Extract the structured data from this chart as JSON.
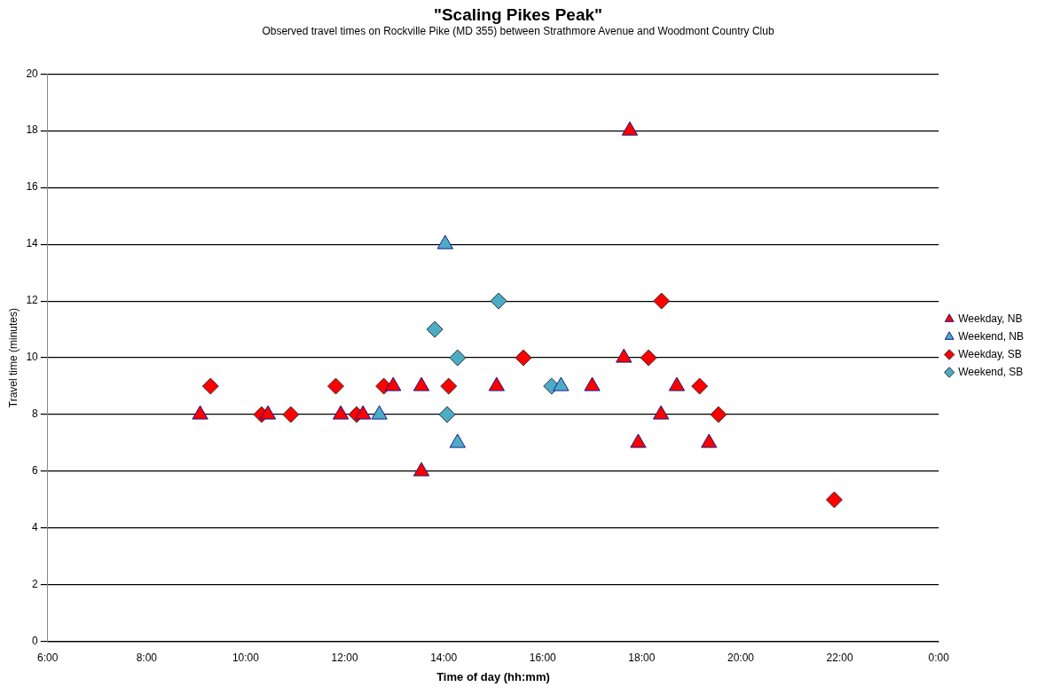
{
  "chart_data": {
    "type": "scatter",
    "title": "\"Scaling Pikes Peak\"",
    "subtitle": "Observed travel times on Rockville Pike (MD 355) between Strathmore Avenue and Woodmont Country Club",
    "xlabel": "Time of day (hh:mm)",
    "ylabel": "Travel time (minutes)",
    "xlim": [
      6,
      24
    ],
    "xticks": [
      {
        "value": 6,
        "label": "6:00"
      },
      {
        "value": 8,
        "label": "8:00"
      },
      {
        "value": 10,
        "label": "10:00"
      },
      {
        "value": 12,
        "label": "12:00"
      },
      {
        "value": 14,
        "label": "14:00"
      },
      {
        "value": 16,
        "label": "16:00"
      },
      {
        "value": 18,
        "label": "18:00"
      },
      {
        "value": 20,
        "label": "20:00"
      },
      {
        "value": 22,
        "label": "22:00"
      },
      {
        "value": 24,
        "label": "0:00"
      }
    ],
    "ylim": [
      0,
      20
    ],
    "yticks": [
      0,
      2,
      4,
      6,
      8,
      10,
      12,
      14,
      16,
      18,
      20
    ],
    "grid": "y",
    "legend": "right",
    "series": [
      {
        "name": "Weekday, NB",
        "color": "#ff0000",
        "marker": "triangle",
        "x": [
          9.08,
          10.45,
          11.92,
          12.37,
          12.98,
          13.55,
          13.55,
          15.07,
          17.0,
          17.64,
          17.76,
          17.93,
          18.39,
          18.71,
          19.36
        ],
        "values": [
          8,
          8,
          8,
          8,
          9,
          9,
          6,
          9,
          9,
          10,
          18,
          7,
          8,
          9,
          7
        ]
      },
      {
        "name": "Weekend, NB",
        "color": "#4bacc6",
        "marker": "triangle",
        "x": [
          12.7,
          14.03,
          14.28,
          16.37
        ],
        "values": [
          8,
          14,
          7,
          9
        ]
      },
      {
        "name": "Weekday, SB",
        "color": "#ff0000",
        "marker": "diamond",
        "x": [
          9.29,
          10.32,
          10.91,
          11.82,
          12.24,
          12.79,
          14.1,
          15.61,
          18.14,
          18.4,
          19.17,
          19.55,
          21.89
        ],
        "values": [
          9,
          8,
          8,
          9,
          8,
          9,
          9,
          10,
          10,
          12,
          9,
          8,
          5
        ]
      },
      {
        "name": "Weekend, SB",
        "color": "#4bacc6",
        "marker": "diamond",
        "x": [
          13.82,
          14.07,
          14.28,
          15.11,
          16.18
        ],
        "values": [
          11,
          8,
          10,
          12,
          9
        ]
      }
    ]
  }
}
